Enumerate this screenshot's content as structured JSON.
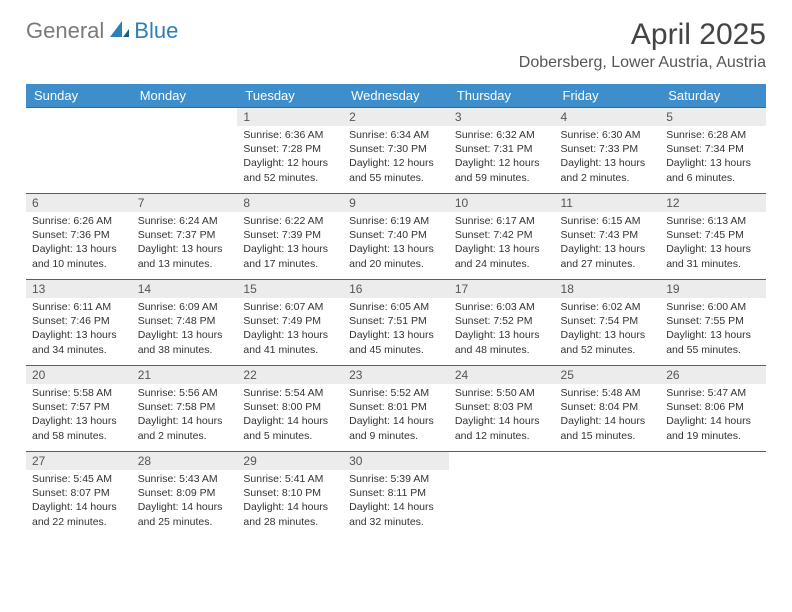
{
  "logo": {
    "text1": "General",
    "text2": "Blue"
  },
  "title": "April 2025",
  "location": "Dobersberg, Lower Austria, Austria",
  "dayHeaders": [
    "Sunday",
    "Monday",
    "Tuesday",
    "Wednesday",
    "Thursday",
    "Friday",
    "Saturday"
  ],
  "colors": {
    "headerBg": "#3e8ecb",
    "headerText": "#ffffff",
    "dayNumBg": "#ececec",
    "borderTop": "#2f6a9e",
    "logoGray": "#7a7a7a",
    "logoBlue": "#2c7fb8"
  },
  "weeks": [
    [
      {
        "n": "",
        "sunrise": "",
        "sunset": "",
        "daylight": ""
      },
      {
        "n": "",
        "sunrise": "",
        "sunset": "",
        "daylight": ""
      },
      {
        "n": "1",
        "sunrise": "Sunrise: 6:36 AM",
        "sunset": "Sunset: 7:28 PM",
        "daylight": "Daylight: 12 hours and 52 minutes."
      },
      {
        "n": "2",
        "sunrise": "Sunrise: 6:34 AM",
        "sunset": "Sunset: 7:30 PM",
        "daylight": "Daylight: 12 hours and 55 minutes."
      },
      {
        "n": "3",
        "sunrise": "Sunrise: 6:32 AM",
        "sunset": "Sunset: 7:31 PM",
        "daylight": "Daylight: 12 hours and 59 minutes."
      },
      {
        "n": "4",
        "sunrise": "Sunrise: 6:30 AM",
        "sunset": "Sunset: 7:33 PM",
        "daylight": "Daylight: 13 hours and 2 minutes."
      },
      {
        "n": "5",
        "sunrise": "Sunrise: 6:28 AM",
        "sunset": "Sunset: 7:34 PM",
        "daylight": "Daylight: 13 hours and 6 minutes."
      }
    ],
    [
      {
        "n": "6",
        "sunrise": "Sunrise: 6:26 AM",
        "sunset": "Sunset: 7:36 PM",
        "daylight": "Daylight: 13 hours and 10 minutes."
      },
      {
        "n": "7",
        "sunrise": "Sunrise: 6:24 AM",
        "sunset": "Sunset: 7:37 PM",
        "daylight": "Daylight: 13 hours and 13 minutes."
      },
      {
        "n": "8",
        "sunrise": "Sunrise: 6:22 AM",
        "sunset": "Sunset: 7:39 PM",
        "daylight": "Daylight: 13 hours and 17 minutes."
      },
      {
        "n": "9",
        "sunrise": "Sunrise: 6:19 AM",
        "sunset": "Sunset: 7:40 PM",
        "daylight": "Daylight: 13 hours and 20 minutes."
      },
      {
        "n": "10",
        "sunrise": "Sunrise: 6:17 AM",
        "sunset": "Sunset: 7:42 PM",
        "daylight": "Daylight: 13 hours and 24 minutes."
      },
      {
        "n": "11",
        "sunrise": "Sunrise: 6:15 AM",
        "sunset": "Sunset: 7:43 PM",
        "daylight": "Daylight: 13 hours and 27 minutes."
      },
      {
        "n": "12",
        "sunrise": "Sunrise: 6:13 AM",
        "sunset": "Sunset: 7:45 PM",
        "daylight": "Daylight: 13 hours and 31 minutes."
      }
    ],
    [
      {
        "n": "13",
        "sunrise": "Sunrise: 6:11 AM",
        "sunset": "Sunset: 7:46 PM",
        "daylight": "Daylight: 13 hours and 34 minutes."
      },
      {
        "n": "14",
        "sunrise": "Sunrise: 6:09 AM",
        "sunset": "Sunset: 7:48 PM",
        "daylight": "Daylight: 13 hours and 38 minutes."
      },
      {
        "n": "15",
        "sunrise": "Sunrise: 6:07 AM",
        "sunset": "Sunset: 7:49 PM",
        "daylight": "Daylight: 13 hours and 41 minutes."
      },
      {
        "n": "16",
        "sunrise": "Sunrise: 6:05 AM",
        "sunset": "Sunset: 7:51 PM",
        "daylight": "Daylight: 13 hours and 45 minutes."
      },
      {
        "n": "17",
        "sunrise": "Sunrise: 6:03 AM",
        "sunset": "Sunset: 7:52 PM",
        "daylight": "Daylight: 13 hours and 48 minutes."
      },
      {
        "n": "18",
        "sunrise": "Sunrise: 6:02 AM",
        "sunset": "Sunset: 7:54 PM",
        "daylight": "Daylight: 13 hours and 52 minutes."
      },
      {
        "n": "19",
        "sunrise": "Sunrise: 6:00 AM",
        "sunset": "Sunset: 7:55 PM",
        "daylight": "Daylight: 13 hours and 55 minutes."
      }
    ],
    [
      {
        "n": "20",
        "sunrise": "Sunrise: 5:58 AM",
        "sunset": "Sunset: 7:57 PM",
        "daylight": "Daylight: 13 hours and 58 minutes."
      },
      {
        "n": "21",
        "sunrise": "Sunrise: 5:56 AM",
        "sunset": "Sunset: 7:58 PM",
        "daylight": "Daylight: 14 hours and 2 minutes."
      },
      {
        "n": "22",
        "sunrise": "Sunrise: 5:54 AM",
        "sunset": "Sunset: 8:00 PM",
        "daylight": "Daylight: 14 hours and 5 minutes."
      },
      {
        "n": "23",
        "sunrise": "Sunrise: 5:52 AM",
        "sunset": "Sunset: 8:01 PM",
        "daylight": "Daylight: 14 hours and 9 minutes."
      },
      {
        "n": "24",
        "sunrise": "Sunrise: 5:50 AM",
        "sunset": "Sunset: 8:03 PM",
        "daylight": "Daylight: 14 hours and 12 minutes."
      },
      {
        "n": "25",
        "sunrise": "Sunrise: 5:48 AM",
        "sunset": "Sunset: 8:04 PM",
        "daylight": "Daylight: 14 hours and 15 minutes."
      },
      {
        "n": "26",
        "sunrise": "Sunrise: 5:47 AM",
        "sunset": "Sunset: 8:06 PM",
        "daylight": "Daylight: 14 hours and 19 minutes."
      }
    ],
    [
      {
        "n": "27",
        "sunrise": "Sunrise: 5:45 AM",
        "sunset": "Sunset: 8:07 PM",
        "daylight": "Daylight: 14 hours and 22 minutes."
      },
      {
        "n": "28",
        "sunrise": "Sunrise: 5:43 AM",
        "sunset": "Sunset: 8:09 PM",
        "daylight": "Daylight: 14 hours and 25 minutes."
      },
      {
        "n": "29",
        "sunrise": "Sunrise: 5:41 AM",
        "sunset": "Sunset: 8:10 PM",
        "daylight": "Daylight: 14 hours and 28 minutes."
      },
      {
        "n": "30",
        "sunrise": "Sunrise: 5:39 AM",
        "sunset": "Sunset: 8:11 PM",
        "daylight": "Daylight: 14 hours and 32 minutes."
      },
      {
        "n": "",
        "sunrise": "",
        "sunset": "",
        "daylight": ""
      },
      {
        "n": "",
        "sunrise": "",
        "sunset": "",
        "daylight": ""
      },
      {
        "n": "",
        "sunrise": "",
        "sunset": "",
        "daylight": ""
      }
    ]
  ]
}
